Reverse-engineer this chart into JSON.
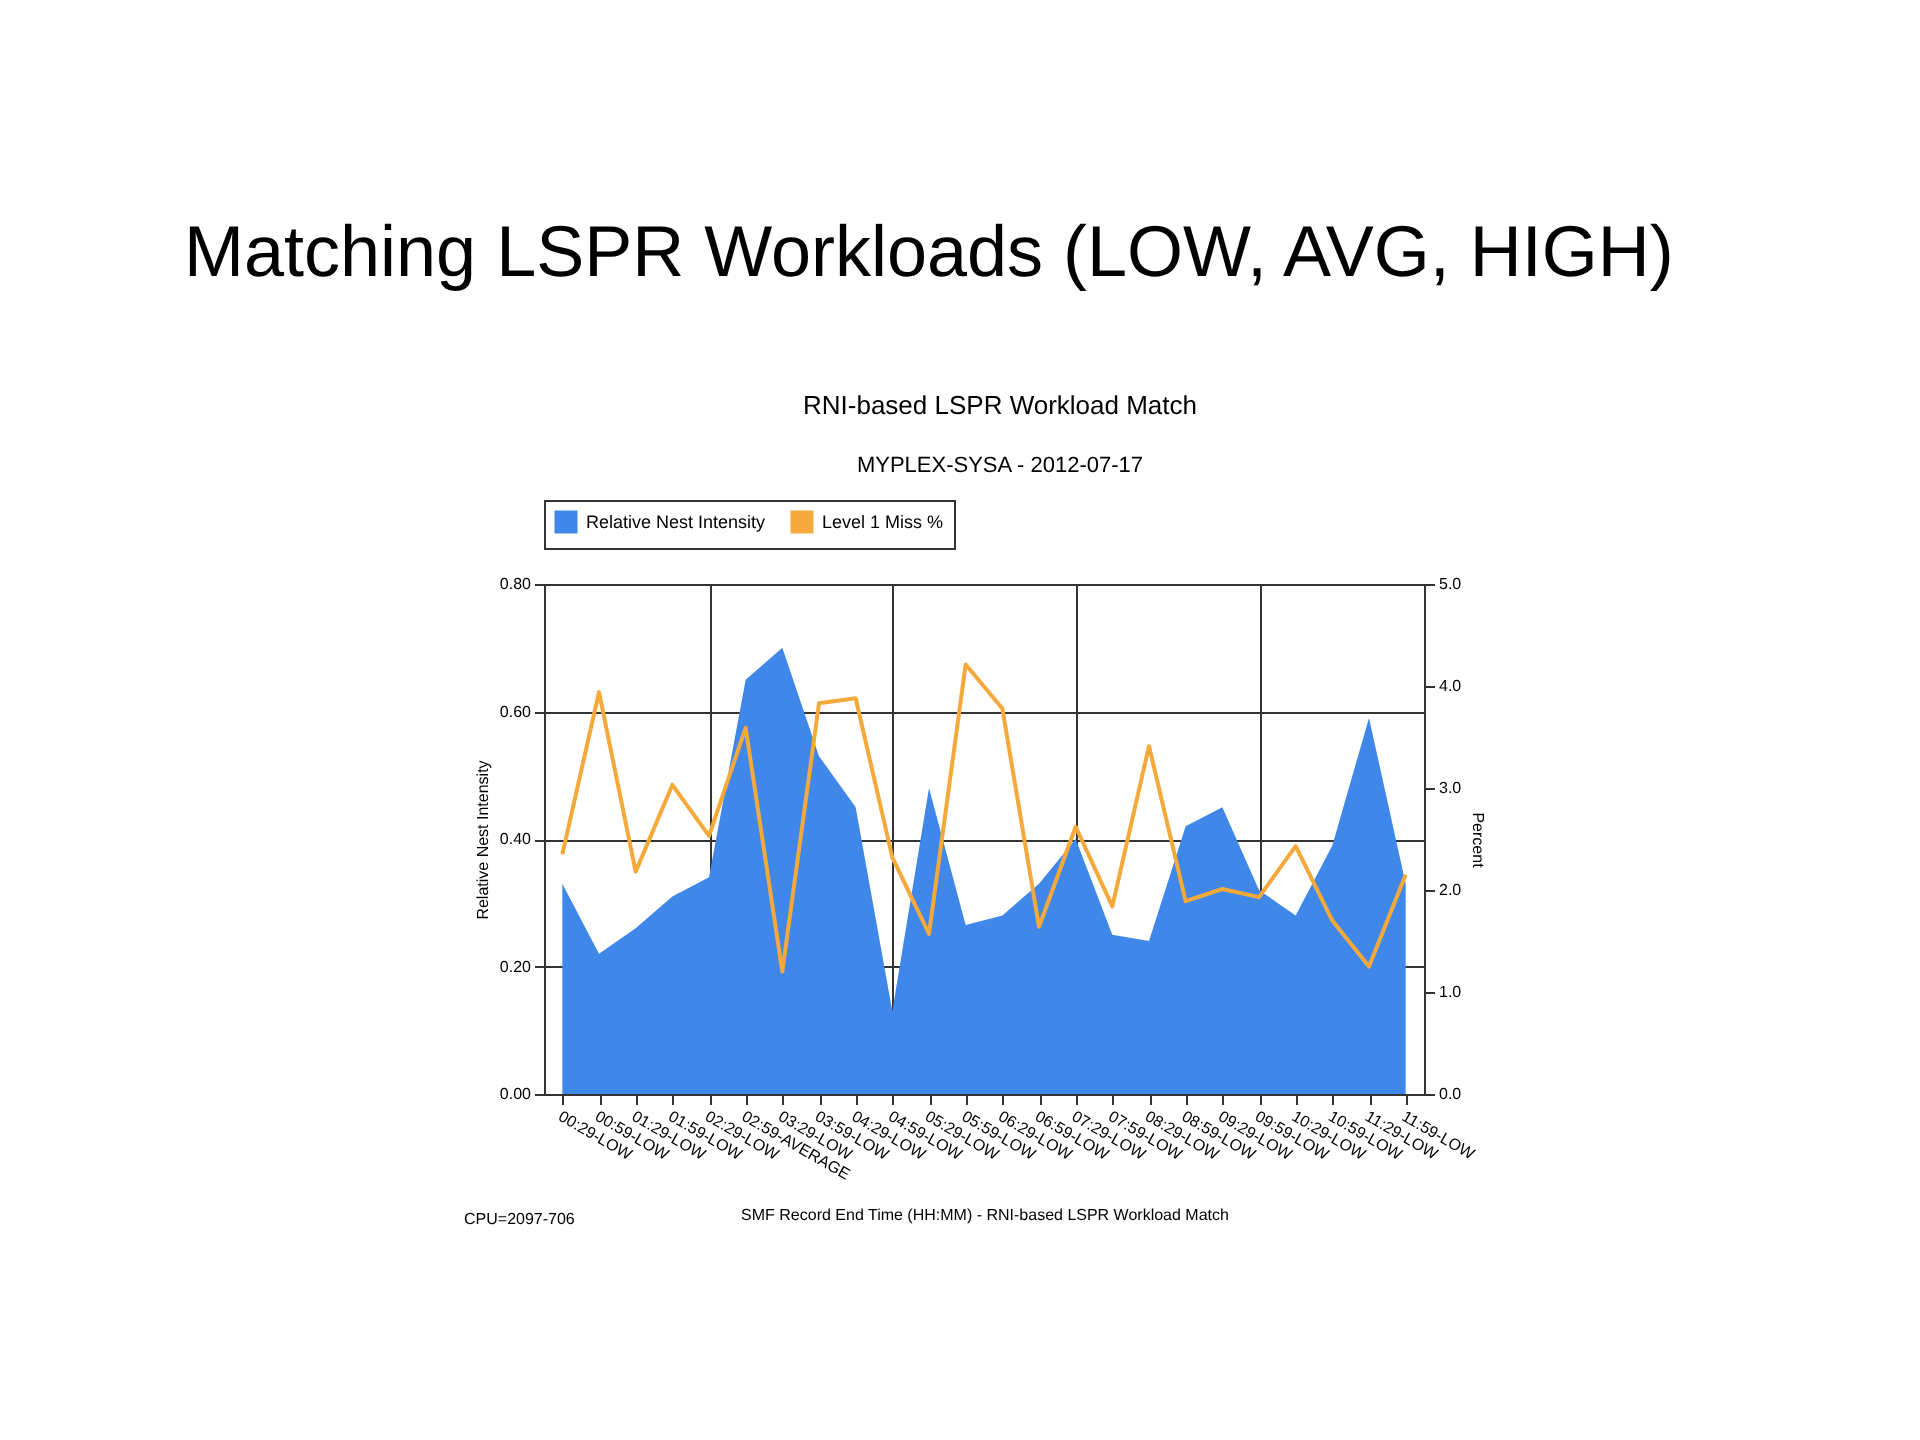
{
  "chart_data": {
    "type": "area",
    "title": "RNI-based LSPR Workload Match",
    "subtitle": "MYPLEX-SYSA - 2012-07-17",
    "xlabel": "SMF Record End Time (HH:MM) - RNI-based LSPR Workload Match",
    "ylabel": "Relative Nest Intensity",
    "y2label": "Percent",
    "annotations": [
      "Matching LSPR Workloads (LOW, AVG, HIGH)",
      "CPU=2097-706"
    ],
    "categories": [
      "00:29-LOW",
      "00:59-LOW",
      "01:29-LOW",
      "01:59-LOW",
      "02:29-LOW",
      "02:59-AVERAGE",
      "03:29-LOW",
      "03:59-LOW",
      "04:29-LOW",
      "04:59-LOW",
      "05:29-LOW",
      "05:59-LOW",
      "06:29-LOW",
      "06:59-LOW",
      "07:29-LOW",
      "07:59-LOW",
      "08:29-LOW",
      "08:59-LOW",
      "09:29-LOW",
      "09:59-LOW",
      "10:29-LOW",
      "10:59-LOW",
      "11:29-LOW",
      "11:59-LOW"
    ],
    "series": [
      {
        "name": "Relative Nest Intensity",
        "type": "area",
        "color": "#3f87e8",
        "values": [
          0.33,
          0.22,
          0.26,
          0.31,
          0.34,
          0.65,
          0.7,
          0.53,
          0.45,
          0.13,
          0.48,
          0.265,
          0.28,
          0.33,
          0.4,
          0.25,
          0.24,
          0.42,
          0.45,
          0.32,
          0.28,
          0.39,
          0.59,
          0.33
        ]
      },
      {
        "name": "Level 1 Miss %",
        "type": "line",
        "axis": "y2",
        "color": "#f5a93a",
        "values": [
          2.35,
          3.94,
          2.18,
          3.03,
          2.53,
          3.59,
          1.2,
          3.83,
          3.88,
          2.32,
          1.57,
          4.21,
          3.78,
          1.64,
          2.62,
          1.84,
          3.41,
          1.89,
          2.01,
          1.93,
          2.43,
          1.7,
          1.25,
          2.15
        ]
      }
    ],
    "ylim": [
      0,
      0.8
    ],
    "yticks": [
      {
        "value": 0,
        "label": "0.00"
      },
      {
        "value": 0.2,
        "label": "0.20"
      },
      {
        "value": 0.4,
        "label": "0.40"
      },
      {
        "value": 0.6,
        "label": "0.60"
      },
      {
        "value": 0.8,
        "label": "0.80"
      }
    ],
    "y2lim": [
      0,
      5
    ],
    "y2ticks": [
      {
        "value": 0,
        "label": "0.0"
      },
      {
        "value": 1,
        "label": "1.0"
      },
      {
        "value": 2,
        "label": "2.0"
      },
      {
        "value": 3,
        "label": "3.0"
      },
      {
        "value": 4,
        "label": "4.0"
      },
      {
        "value": 5,
        "label": "5.0"
      }
    ],
    "grid": true,
    "legend": "top"
  }
}
